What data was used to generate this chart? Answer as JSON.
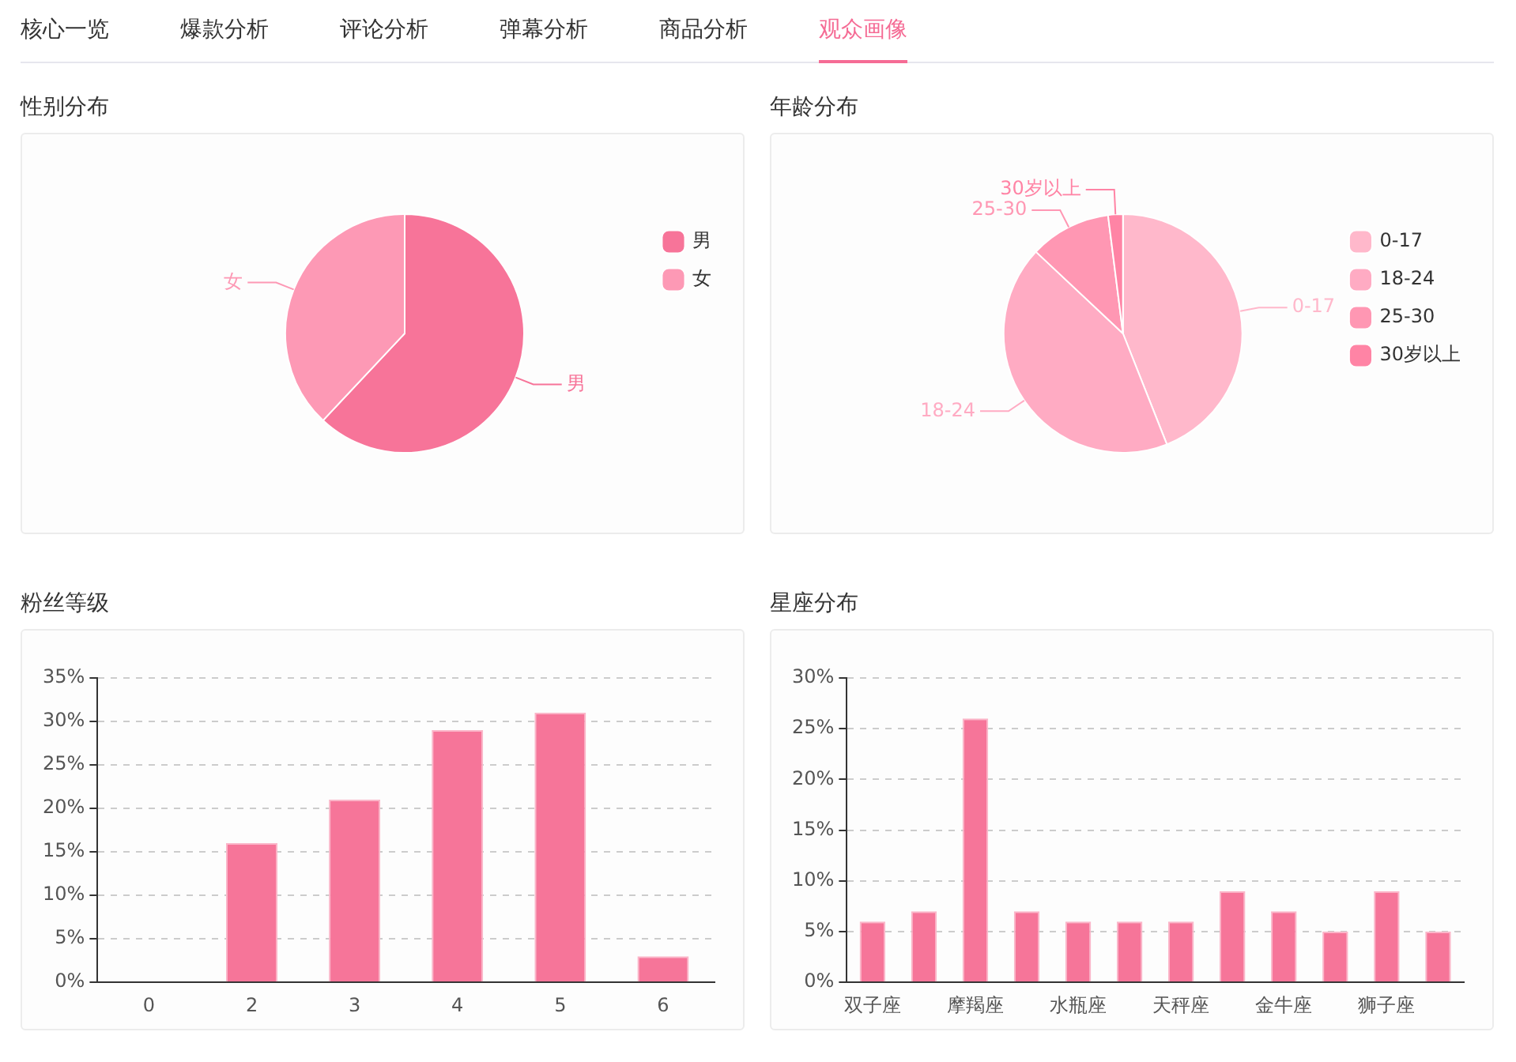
{
  "chart_data": [
    {
      "type": "other",
      "annotations": [
        "核心一览",
        "爆款分析",
        "评论分析",
        "弹幕分析",
        "商品分析",
        "观众画像"
      ]
    },
    {
      "type": "pie",
      "title": "性别分布",
      "categories": [
        "男",
        "女"
      ],
      "values": [
        62,
        38
      ],
      "colors": [
        "#f77499",
        "#fd99b5"
      ],
      "legend": "top right"
    },
    {
      "type": "pie",
      "title": "年龄分布",
      "categories": [
        "0-17",
        "18-24",
        "25-30",
        "30岁以上"
      ],
      "values": [
        44,
        43,
        11,
        2
      ],
      "colors": [
        "#ffb8cb",
        "#ffabc3",
        "#ff97b3",
        "#ff84a5"
      ],
      "legend": "top right"
    },
    {
      "type": "bar",
      "title": "粉丝等级",
      "categories": [
        "0",
        "2",
        "3",
        "4",
        "5",
        "6"
      ],
      "values": [
        0,
        16,
        21,
        29,
        31,
        3
      ],
      "color": "#f67599",
      "ylim": [
        0,
        35
      ],
      "yticks": [
        {
          "value": 0,
          "label": "0%"
        },
        {
          "value": 5,
          "label": "5%"
        },
        {
          "value": 10,
          "label": "10%"
        },
        {
          "value": 15,
          "label": "15%"
        },
        {
          "value": 20,
          "label": "20%"
        },
        {
          "value": 25,
          "label": "25%"
        },
        {
          "value": 30,
          "label": "30%"
        },
        {
          "value": 35,
          "label": "35%"
        }
      ],
      "grid": "y"
    },
    {
      "type": "bar",
      "title": "星座分布",
      "categories": [
        "双子座",
        null,
        "摩羯座",
        null,
        "水瓶座",
        null,
        "天秤座",
        null,
        "金牛座",
        null,
        "狮子座",
        null
      ],
      "values": [
        6,
        7,
        26,
        7,
        6,
        6,
        6,
        9,
        7,
        5,
        9,
        5
      ],
      "color": "#f67599",
      "ylim": [
        0,
        30
      ],
      "yticks": [
        {
          "value": 0,
          "label": "0%"
        },
        {
          "value": 5,
          "label": "5%"
        },
        {
          "value": 10,
          "label": "10%"
        },
        {
          "value": 15,
          "label": "15%"
        },
        {
          "value": 20,
          "label": "20%"
        },
        {
          "value": 25,
          "label": "25%"
        },
        {
          "value": 30,
          "label": "30%"
        }
      ],
      "grid": "y"
    }
  ]
}
